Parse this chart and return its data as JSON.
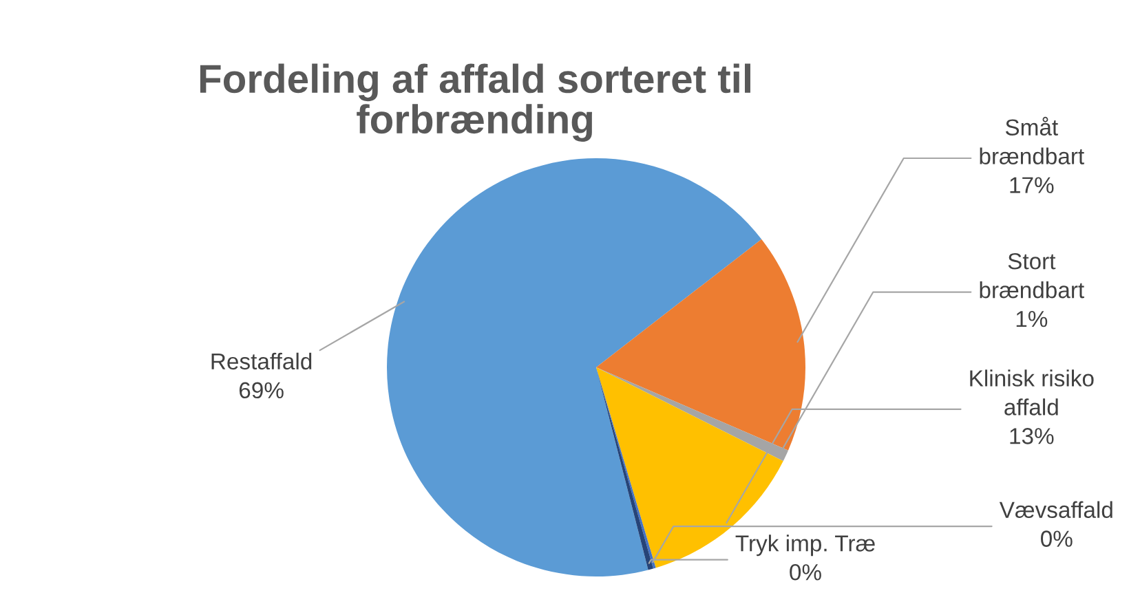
{
  "chart_data": {
    "type": "pie",
    "title": "Fordeling af affald sorteret til forbrænding",
    "categories": [
      "Restaffald",
      "Småt brændbart",
      "Stort brændbart",
      "Klinisk risiko affald",
      "Vævsaffald",
      "Tryk imp. Træ"
    ],
    "values": [
      68.5,
      17,
      0.9,
      13,
      0.2,
      0.4
    ],
    "value_labels": [
      "69%",
      "17%",
      "1%",
      "13%",
      "0%",
      "0%"
    ],
    "colors": [
      "#5b9bd5",
      "#ed7d31",
      "#a5a5a5",
      "#ffc000",
      "#4472c4",
      "#264478"
    ]
  }
}
